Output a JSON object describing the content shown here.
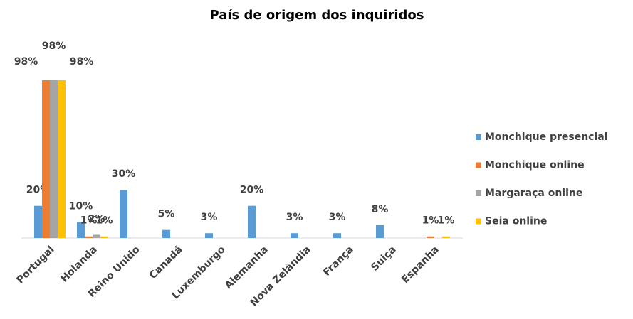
{
  "chart_data": {
    "type": "bar",
    "title": "País de origem dos inquiridos",
    "categories": [
      "Portugal",
      "Holanda",
      "Reino Unido",
      "Canadá",
      "Luxemburgo",
      "Alemanha",
      "Nova Zelândia",
      "França",
      "Suiça",
      "Espanha"
    ],
    "series": [
      {
        "name": "Monchique presencial",
        "color": "#5b9bd5",
        "values": [
          20,
          10,
          30,
          5,
          3,
          20,
          3,
          3,
          8,
          null
        ],
        "value_labels": [
          "20%",
          "10%",
          "30%",
          "5%",
          "3%",
          "20%",
          "3%",
          "3%",
          "8%",
          null
        ]
      },
      {
        "name": "Monchique online",
        "color": "#ed7d31",
        "values": [
          98,
          1,
          null,
          null,
          null,
          null,
          null,
          null,
          null,
          1
        ],
        "value_labels": [
          "98%",
          "1%",
          null,
          null,
          null,
          null,
          null,
          null,
          null,
          "1%"
        ]
      },
      {
        "name": "Margaraça online",
        "color": "#a5a5a5",
        "values": [
          98,
          2,
          null,
          null,
          null,
          null,
          null,
          null,
          null,
          null
        ],
        "value_labels": [
          "98%",
          "2%",
          null,
          null,
          null,
          null,
          null,
          null,
          null,
          null
        ]
      },
      {
        "name": "Seia online",
        "color": "#ffc000",
        "values": [
          98,
          1,
          null,
          null,
          null,
          null,
          null,
          null,
          null,
          1
        ],
        "value_labels": [
          "98%",
          "1%",
          null,
          null,
          null,
          null,
          null,
          null,
          null,
          "1%"
        ]
      }
    ],
    "legend": "right"
  }
}
